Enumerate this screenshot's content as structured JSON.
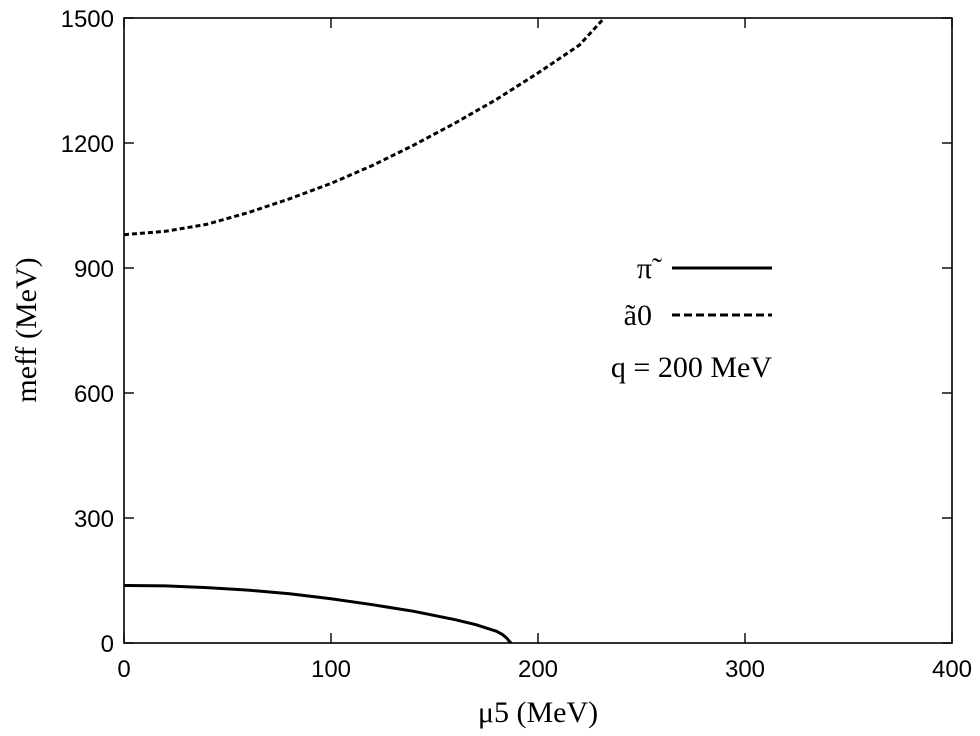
{
  "chart_data": {
    "type": "line",
    "title": "",
    "xlabel": "μ5 (MeV)",
    "ylabel": "meff (MeV)",
    "xlim": [
      0,
      400
    ],
    "ylim": [
      0,
      1500
    ],
    "xticks": [
      0,
      100,
      200,
      300,
      400
    ],
    "yticks": [
      0,
      300,
      600,
      900,
      1200,
      1500
    ],
    "x_tick_labels": [
      "0",
      "100",
      "200",
      "300",
      "400"
    ],
    "y_tick_labels": [
      "0",
      "300",
      "600",
      "900",
      "1200",
      "1500"
    ],
    "grid": false,
    "legend_position": "center-right",
    "annotation": "q = 200 MeV",
    "series": [
      {
        "name": "π̃",
        "style": "solid",
        "color": "#000000",
        "x": [
          0,
          20,
          40,
          60,
          80,
          100,
          120,
          140,
          160,
          170,
          180,
          183,
          185,
          186,
          187
        ],
        "y": [
          138,
          137,
          133,
          127,
          118,
          106,
          92,
          76,
          56,
          44,
          28,
          20,
          11,
          5,
          0
        ]
      },
      {
        "name": "ã0",
        "style": "dashed",
        "color": "#000000",
        "x": [
          0,
          20,
          40,
          60,
          80,
          100,
          120,
          140,
          160,
          180,
          200,
          220,
          232
        ],
        "y": [
          980,
          988,
          1005,
          1033,
          1066,
          1103,
          1146,
          1195,
          1248,
          1305,
          1368,
          1435,
          1500
        ]
      }
    ]
  }
}
